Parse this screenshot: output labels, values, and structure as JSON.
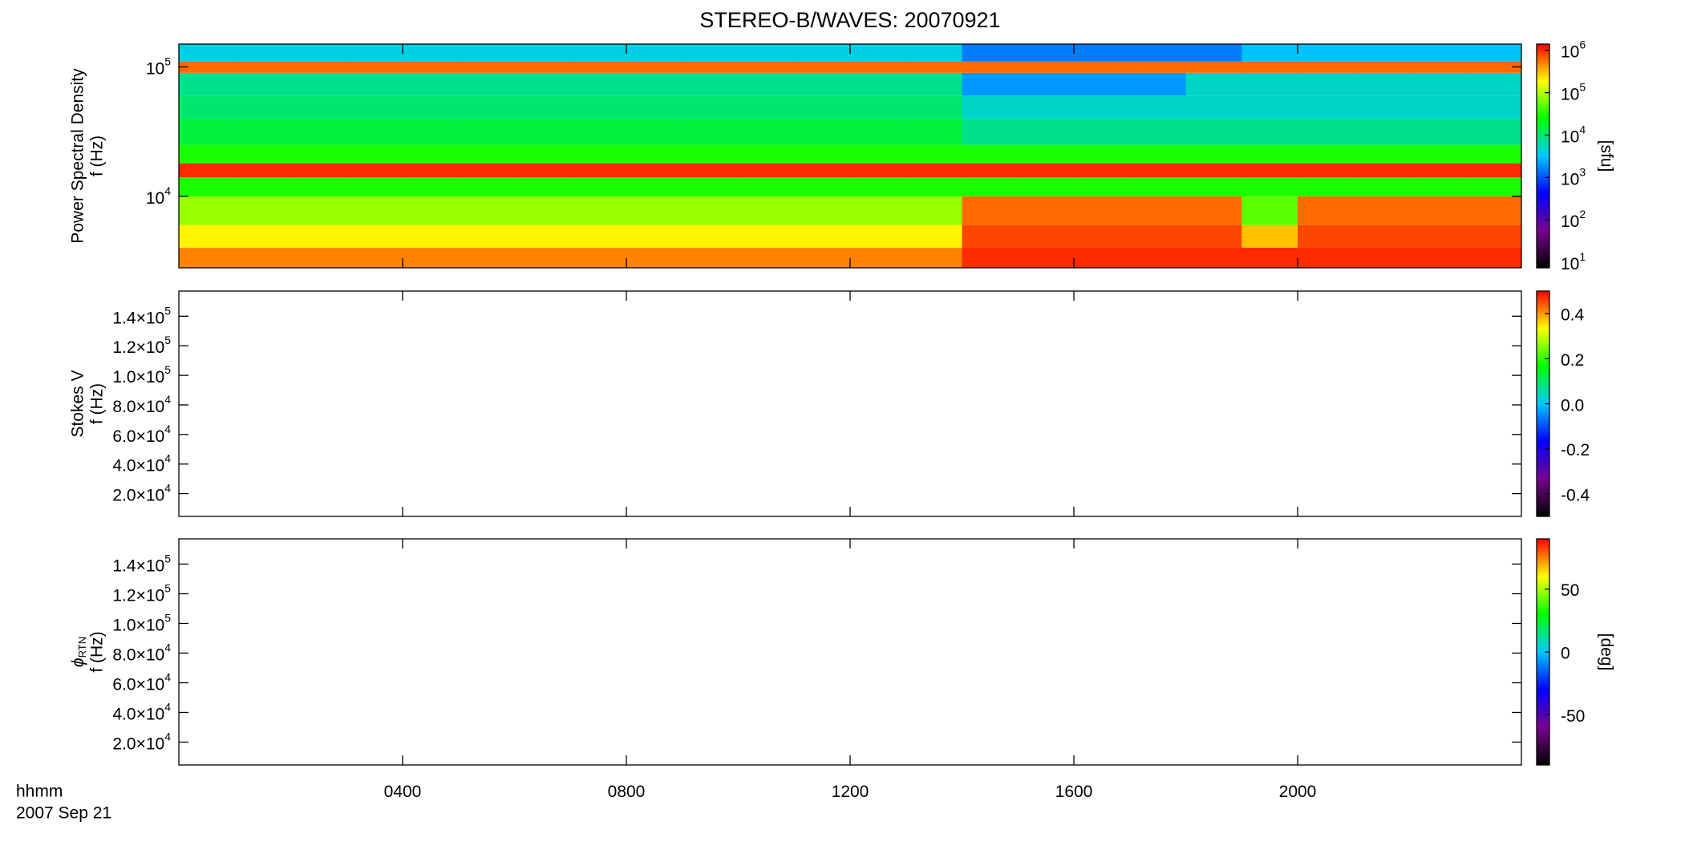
{
  "title": "STEREO-B/WAVES: 20070921",
  "time_label": "hhmm",
  "date_label": "2007 Sep 21",
  "x_axis": {
    "xlim": [
      0,
      24
    ],
    "xticks": [
      {
        "value": 4,
        "label": "0400"
      },
      {
        "value": 8,
        "label": "0800"
      },
      {
        "value": 12,
        "label": "1200"
      },
      {
        "value": 16,
        "label": "1600"
      },
      {
        "value": 20,
        "label": "2000"
      }
    ]
  },
  "colormap": [
    "#000000",
    "#7a0090",
    "#0000ff",
    "#00c8ff",
    "#00ff00",
    "#ffff00",
    "#ff0000"
  ],
  "chart_data": [
    {
      "type": "spectrogram",
      "ylabel": [
        "Power Spectral Density",
        "f (Hz)"
      ],
      "ylog": true,
      "ylim": [
        2800,
        150000
      ],
      "yticks": [
        {
          "value": 10000,
          "label": "10",
          "exp": "4"
        },
        {
          "value": 100000,
          "label": "10",
          "exp": "5"
        }
      ],
      "zlog": true,
      "clim": [
        7.4,
        1400000
      ],
      "clabel": "[sfu]",
      "cticks": [
        {
          "value": 10,
          "label": "10",
          "exp": "1"
        },
        {
          "value": 100,
          "label": "10",
          "exp": "2"
        },
        {
          "value": 1000,
          "label": "10",
          "exp": "3"
        },
        {
          "value": 10000,
          "label": "10",
          "exp": "4"
        },
        {
          "value": 100000,
          "label": "10",
          "exp": "5"
        },
        {
          "value": 1000000,
          "label": "10",
          "exp": "6"
        }
      ],
      "time_edges": [
        0,
        1,
        2,
        3,
        4,
        5,
        6,
        7,
        8,
        9,
        10,
        11,
        12,
        13,
        14,
        15,
        16,
        17,
        18,
        19,
        20,
        21,
        22,
        23,
        24
      ],
      "freq_edges": [
        2800,
        4000,
        6000,
        10000,
        14000,
        18000,
        25000,
        40000,
        60000,
        90000,
        110000,
        150000
      ],
      "z": [
        [
          500000,
          500000,
          500000,
          500000,
          500000,
          500000,
          500000,
          500000,
          500000,
          500000,
          500000,
          500000,
          500000,
          500000,
          1000000,
          1000000,
          1000000,
          1000000,
          1000000,
          1000000,
          1000000,
          1000000,
          1000000,
          1000000
        ],
        [
          200000,
          200000,
          200000,
          200000,
          200000,
          200000,
          200000,
          200000,
          200000,
          200000,
          200000,
          200000,
          200000,
          200000,
          800000,
          800000,
          800000,
          800000,
          800000,
          300000,
          800000,
          800000,
          800000,
          800000
        ],
        [
          80000,
          80000,
          80000,
          80000,
          80000,
          80000,
          80000,
          80000,
          80000,
          80000,
          80000,
          80000,
          80000,
          80000,
          600000,
          600000,
          600000,
          600000,
          600000,
          50000,
          600000,
          600000,
          600000,
          600000
        ],
        [
          30000,
          30000,
          30000,
          30000,
          30000,
          30000,
          30000,
          30000,
          30000,
          30000,
          30000,
          30000,
          30000,
          30000,
          30000,
          30000,
          30000,
          30000,
          30000,
          30000,
          30000,
          30000,
          30000,
          30000
        ],
        [
          1000000,
          1000000,
          1000000,
          1000000,
          1000000,
          1000000,
          1000000,
          1000000,
          1000000,
          1000000,
          1000000,
          1000000,
          1000000,
          1000000,
          1000000,
          1000000,
          1000000,
          1000000,
          1000000,
          1000000,
          1000000,
          1000000,
          1000000,
          1000000
        ],
        [
          30000,
          30000,
          30000,
          30000,
          30000,
          30000,
          30000,
          30000,
          30000,
          30000,
          30000,
          30000,
          30000,
          30000,
          30000,
          30000,
          30000,
          30000,
          30000,
          30000,
          30000,
          30000,
          30000,
          30000
        ],
        [
          15000,
          15000,
          15000,
          15000,
          15000,
          15000,
          15000,
          15000,
          15000,
          15000,
          15000,
          15000,
          15000,
          15000,
          8000,
          8000,
          8000,
          8000,
          8000,
          8000,
          8000,
          8000,
          8000,
          8000
        ],
        [
          10000,
          10000,
          10000,
          10000,
          10000,
          10000,
          10000,
          10000,
          10000,
          10000,
          10000,
          10000,
          10000,
          10000,
          5000,
          5000,
          5000,
          5000,
          5000,
          5000,
          5000,
          5000,
          5000,
          5000
        ],
        [
          8000,
          8000,
          8000,
          8000,
          8000,
          8000,
          8000,
          8000,
          8000,
          8000,
          8000,
          8000,
          8000,
          8000,
          2000,
          2000,
          2000,
          2000,
          5000,
          5000,
          5000,
          5000,
          5000,
          5000
        ],
        [
          600000,
          600000,
          600000,
          600000,
          600000,
          600000,
          600000,
          600000,
          600000,
          600000,
          600000,
          600000,
          600000,
          600000,
          600000,
          600000,
          600000,
          600000,
          600000,
          600000,
          600000,
          600000,
          600000,
          600000
        ],
        [
          4000,
          4000,
          4000,
          4000,
          4000,
          4000,
          4000,
          4000,
          4000,
          4000,
          4000,
          4000,
          4000,
          4000,
          1500,
          1500,
          1500,
          1500,
          1500,
          3000,
          3000,
          3000,
          3000,
          3000
        ]
      ]
    },
    {
      "type": "empty",
      "ylabel": [
        "Stokes V",
        "f (Hz)"
      ],
      "ylim": [
        4600,
        157000
      ],
      "yticks": [
        {
          "value": 20000,
          "label": "2.0×10",
          "exp": "4"
        },
        {
          "value": 40000,
          "label": "4.0×10",
          "exp": "4"
        },
        {
          "value": 60000,
          "label": "6.0×10",
          "exp": "4"
        },
        {
          "value": 80000,
          "label": "8.0×10",
          "exp": "4"
        },
        {
          "value": 100000,
          "label": "1.0×10",
          "exp": "5"
        },
        {
          "value": 120000,
          "label": "1.2×10",
          "exp": "5"
        },
        {
          "value": 140000,
          "label": "1.4×10",
          "exp": "5"
        }
      ],
      "clim": [
        -0.5,
        0.5
      ],
      "cticks": [
        -0.4,
        -0.2,
        {
          "value": 0,
          "label": "0.0"
        },
        0.2,
        0.4
      ]
    },
    {
      "type": "empty",
      "ylabel": [
        {
          "text": "ϕ",
          "sub": "RTN"
        },
        "f (Hz)"
      ],
      "ylim": [
        4600,
        157000
      ],
      "yticks": [
        {
          "value": 20000,
          "label": "2.0×10",
          "exp": "4"
        },
        {
          "value": 40000,
          "label": "4.0×10",
          "exp": "4"
        },
        {
          "value": 60000,
          "label": "6.0×10",
          "exp": "4"
        },
        {
          "value": 80000,
          "label": "8.0×10",
          "exp": "4"
        },
        {
          "value": 100000,
          "label": "1.0×10",
          "exp": "5"
        },
        {
          "value": 120000,
          "label": "1.2×10",
          "exp": "5"
        },
        {
          "value": 140000,
          "label": "1.4×10",
          "exp": "5"
        }
      ],
      "clim": [
        -90,
        90
      ],
      "clabel": "[deg]",
      "cticks": [
        -50,
        0,
        50
      ]
    }
  ]
}
